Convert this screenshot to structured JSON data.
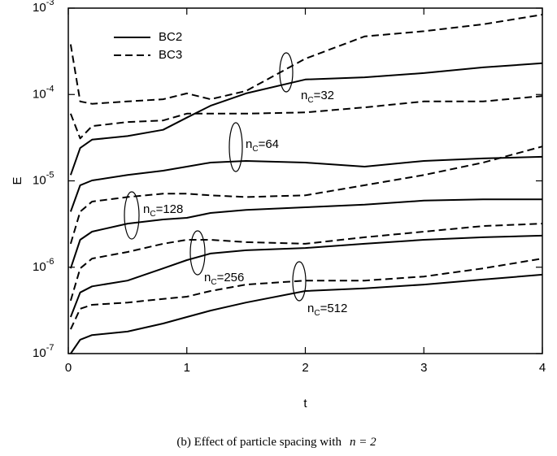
{
  "chart_data": {
    "type": "line",
    "xlabel": "t",
    "ylabel": "E",
    "caption": {
      "text": "(b) Effect of particle spacing with",
      "math": "n = 2"
    },
    "log_y": true,
    "xlim": [
      0,
      4
    ],
    "xticks": [
      0,
      1,
      2,
      3,
      4
    ],
    "ylim": [
      1e-07,
      0.001
    ],
    "yticks": [
      {
        "value": 1e-07,
        "label": {
          "base": "10",
          "exponent": "-7"
        }
      },
      {
        "value": 1e-06,
        "label": {
          "base": "10",
          "exponent": "-6"
        }
      },
      {
        "value": 1e-05,
        "label": {
          "base": "10",
          "exponent": "-5"
        }
      },
      {
        "value": 0.0001,
        "label": {
          "base": "10",
          "exponent": "-4"
        }
      },
      {
        "value": 0.001,
        "label": {
          "base": "10",
          "exponent": "-3"
        }
      }
    ],
    "x": [
      0.02,
      0.1,
      0.2,
      0.5,
      0.8,
      1,
      1.2,
      1.5,
      2,
      2.5,
      3,
      3.5,
      4
    ],
    "series": [
      {
        "name": "BC2",
        "color": "#000000",
        "line_style": "solid",
        "values": [
          1.17e-05,
          2.4e-05,
          3e-05,
          3.3e-05,
          3.9e-05,
          5.4e-05,
          7.4e-05,
          0.000103,
          0.000149,
          0.000158,
          0.000177,
          0.000206,
          0.00023
        ]
      },
      {
        "name": "BC3",
        "color": "#000000",
        "line_style": "dashed",
        "values": [
          0.00038,
          8.3e-05,
          7.8e-05,
          8.3e-05,
          8.8e-05,
          0.000103,
          8.8e-05,
          0.00011,
          0.00026,
          0.00047,
          0.00054,
          0.00065,
          0.00084
        ]
      },
      {
        "name": "BC2",
        "color": "#000000",
        "line_style": "solid",
        "values": [
          4.4e-06,
          8.9e-06,
          1.01e-05,
          1.17e-05,
          1.31e-05,
          1.46e-05,
          1.63e-05,
          1.7e-05,
          1.63e-05,
          1.46e-05,
          1.7e-05,
          1.82e-05,
          1.9e-05
        ]
      },
      {
        "name": "BC3",
        "color": "#000000",
        "line_style": "dashed",
        "values": [
          6e-05,
          3.1e-05,
          4.3e-05,
          4.8e-05,
          5e-05,
          6e-05,
          6e-05,
          6e-05,
          6.2e-05,
          7.1e-05,
          8.3e-05,
          8.3e-05,
          9.6e-05
        ]
      },
      {
        "name": "BC2",
        "color": "#000000",
        "line_style": "solid",
        "values": [
          9.7e-07,
          2.08e-06,
          2.58e-06,
          3.2e-06,
          3.57e-06,
          3.73e-06,
          4.25e-06,
          4.6e-06,
          4.94e-06,
          5.3e-06,
          5.9e-06,
          6.1e-06,
          6.1e-06
        ]
      },
      {
        "name": "BC3",
        "color": "#000000",
        "line_style": "dashed",
        "values": [
          1.87e-06,
          4.4e-06,
          5.75e-06,
          6.5e-06,
          7.1e-06,
          7.1e-06,
          6.8e-06,
          6.5e-06,
          6.8e-06,
          8.9e-06,
          1.17e-05,
          1.63e-05,
          2.5e-05
        ]
      },
      {
        "name": "BC2",
        "color": "#000000",
        "line_style": "solid",
        "values": [
          2.65e-07,
          5.1e-07,
          6e-07,
          7e-07,
          9.7e-07,
          1.21e-06,
          1.44e-06,
          1.57e-06,
          1.67e-06,
          1.87e-06,
          2.08e-06,
          2.22e-06,
          2.32e-06
        ]
      },
      {
        "name": "BC3",
        "color": "#000000",
        "line_style": "dashed",
        "values": [
          4.1e-07,
          9.7e-07,
          1.26e-06,
          1.5e-06,
          1.87e-06,
          2.08e-06,
          2.08e-06,
          1.95e-06,
          1.87e-06,
          2.22e-06,
          2.58e-06,
          3e-06,
          3.2e-06
        ]
      },
      {
        "name": "BC2",
        "color": "#000000",
        "line_style": "solid",
        "values": [
          1e-07,
          1.45e-07,
          1.64e-07,
          1.8e-07,
          2.23e-07,
          2.65e-07,
          3.15e-07,
          3.9e-07,
          5.3e-07,
          5.7e-07,
          6.3e-07,
          7.2e-07,
          8.2e-07
        ]
      },
      {
        "name": "BC3",
        "color": "#000000",
        "line_style": "dashed",
        "values": [
          1.91e-07,
          3.3e-07,
          3.67e-07,
          3.9e-07,
          4.3e-07,
          4.56e-07,
          5.3e-07,
          6.3e-07,
          7e-07,
          7e-07,
          7.8e-07,
          9.7e-07,
          1.26e-06
        ]
      }
    ],
    "annotations": [
      [
        "n",
        "C",
        "=32"
      ],
      [
        "n",
        "C",
        "=64"
      ],
      [
        "n",
        "C",
        "=128"
      ],
      [
        "n",
        "C",
        "=256"
      ],
      [
        "n",
        "C",
        "=512"
      ]
    ]
  }
}
